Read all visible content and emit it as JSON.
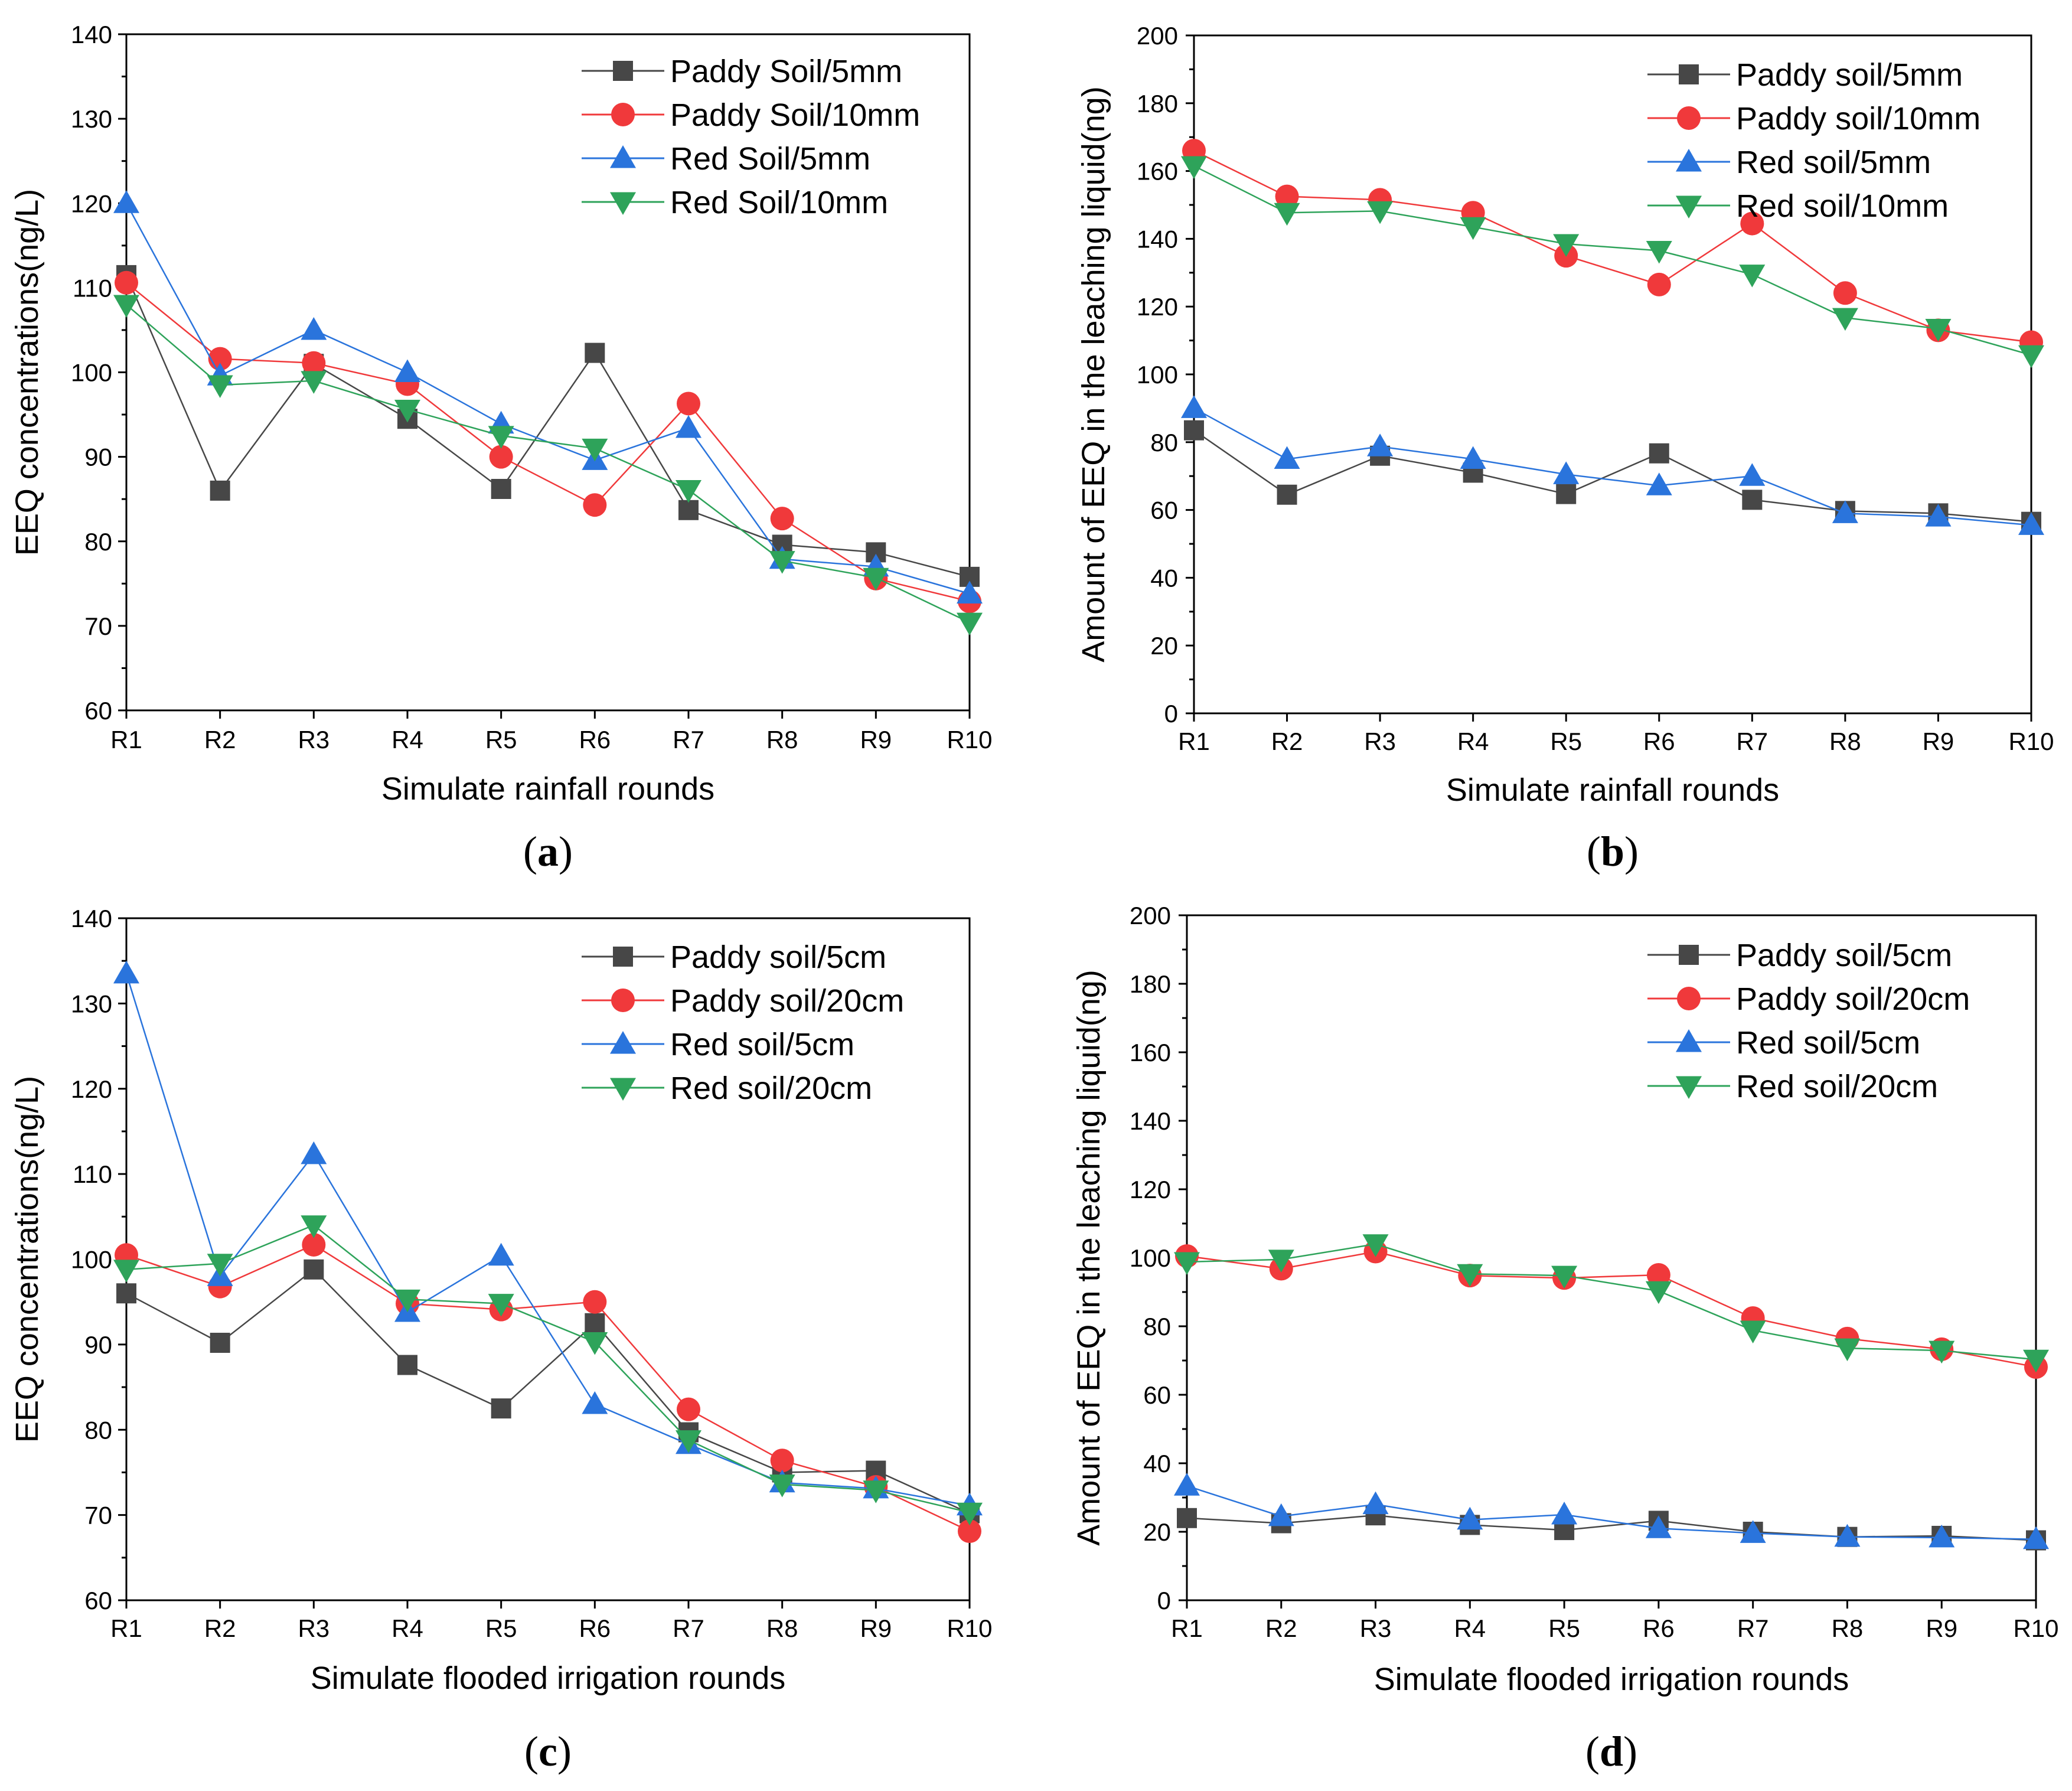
{
  "colors": {
    "paddy_small": "#474747",
    "paddy_large": "#f0393b",
    "red_small": "#2a74dc",
    "red_large": "#2ea35a",
    "axis": "#000000"
  },
  "chart_data": [
    {
      "id": "a",
      "type": "line",
      "panel_label": "a",
      "xlabel": "Simulate rainfall rounds",
      "ylabel": "EEQ concentrations(ng/L)",
      "categories": [
        "R1",
        "R2",
        "R3",
        "R4",
        "R5",
        "R6",
        "R7",
        "R8",
        "R9",
        "R10"
      ],
      "ylim": [
        60,
        140
      ],
      "yticks": [
        60,
        70,
        80,
        90,
        100,
        110,
        120,
        130,
        140
      ],
      "legend_position": "top-right",
      "series": [
        {
          "name": "Paddy Soil/5mm",
          "marker": "square",
          "color_key": "paddy_small",
          "values": [
            111.5,
            86,
            101,
            94.5,
            86.2,
            102.3,
            83.7,
            79.6,
            78.7,
            75.8
          ]
        },
        {
          "name": "Paddy Soil/10mm",
          "marker": "circle",
          "color_key": "paddy_large",
          "values": [
            110.6,
            101.6,
            101.1,
            98.6,
            90,
            84.3,
            96.3,
            82.7,
            75.6,
            72.9
          ]
        },
        {
          "name": "Red Soil/5mm",
          "marker": "triangle-up",
          "color_key": "red_small",
          "values": [
            120,
            99.6,
            105,
            100,
            93.9,
            89.6,
            93.4,
            77.9,
            77,
            73.8
          ]
        },
        {
          "name": "Red Soil/10mm",
          "marker": "triangle-down",
          "color_key": "red_large",
          "values": [
            108,
            98.5,
            99,
            95.6,
            92.5,
            91,
            86.1,
            77.7,
            75.7,
            70.4
          ]
        }
      ]
    },
    {
      "id": "b",
      "type": "line",
      "panel_label": "b",
      "xlabel": "Simulate rainfall rounds",
      "ylabel": "Amount of EEQ in the leaching liquid(ng)",
      "categories": [
        "R1",
        "R2",
        "R3",
        "R4",
        "R5",
        "R6",
        "R7",
        "R8",
        "R9",
        "R10"
      ],
      "ylim": [
        0,
        200
      ],
      "yticks": [
        0,
        20,
        40,
        60,
        80,
        100,
        120,
        140,
        160,
        180,
        200
      ],
      "legend_position": "top-right",
      "series": [
        {
          "name": "Paddy soil/5mm",
          "marker": "square",
          "color_key": "paddy_small",
          "values": [
            83.5,
            64.5,
            76,
            71,
            64.7,
            76.7,
            63,
            59.7,
            59,
            56.5
          ]
        },
        {
          "name": "Paddy soil/10mm",
          "marker": "circle",
          "color_key": "paddy_large",
          "values": [
            166,
            152.5,
            151.5,
            147.7,
            135,
            126.5,
            144.5,
            124,
            113,
            109.5
          ]
        },
        {
          "name": "Red soil/5mm",
          "marker": "triangle-up",
          "color_key": "red_small",
          "values": [
            90,
            75,
            78.7,
            75,
            70.5,
            67.2,
            70,
            59,
            58,
            55.5
          ]
        },
        {
          "name": "Red soil/10mm",
          "marker": "triangle-down",
          "color_key": "red_large",
          "values": [
            161.5,
            147.7,
            148.2,
            143.5,
            138.5,
            136.5,
            129.5,
            116.7,
            113.5,
            105.7
          ]
        }
      ]
    },
    {
      "id": "c",
      "type": "line",
      "panel_label": "c",
      "xlabel": "Simulate flooded irrigation rounds",
      "ylabel": "EEQ concentrations(ng/L)",
      "categories": [
        "R1",
        "R2",
        "R3",
        "R4",
        "R5",
        "R6",
        "R7",
        "R8",
        "R9",
        "R10"
      ],
      "ylim": [
        60,
        140
      ],
      "yticks": [
        60,
        70,
        80,
        90,
        100,
        110,
        120,
        130,
        140
      ],
      "legend_position": "top-right",
      "series": [
        {
          "name": "Paddy soil/5cm",
          "marker": "square",
          "color_key": "paddy_small",
          "values": [
            96,
            90.2,
            98.8,
            87.6,
            82.5,
            92.5,
            79.7,
            75,
            75.2,
            70.2
          ]
        },
        {
          "name": "Paddy soil/20cm",
          "marker": "circle",
          "color_key": "paddy_large",
          "values": [
            100.5,
            96.8,
            101.7,
            94.8,
            94.1,
            95,
            82.4,
            76.4,
            73.3,
            68.1
          ]
        },
        {
          "name": "Red soil/5cm",
          "marker": "triangle-up",
          "color_key": "red_small",
          "values": [
            133.5,
            98,
            112.3,
            93.8,
            100.4,
            83,
            78.3,
            73.8,
            73.1,
            71.1
          ]
        },
        {
          "name": "Red soil/20cm",
          "marker": "triangle-down",
          "color_key": "red_large",
          "values": [
            98.8,
            99.5,
            104,
            95.3,
            94.8,
            90.3,
            78.8,
            73.6,
            72.9,
            70.3
          ]
        }
      ]
    },
    {
      "id": "d",
      "type": "line",
      "panel_label": "d",
      "xlabel": "Simulate flooded irrigation rounds",
      "ylabel": "Amount of EEQ in the leaching liquid(ng)",
      "categories": [
        "R1",
        "R2",
        "R3",
        "R4",
        "R5",
        "R6",
        "R7",
        "R8",
        "R9",
        "R10"
      ],
      "ylim": [
        0,
        200
      ],
      "yticks": [
        0,
        20,
        40,
        60,
        80,
        100,
        120,
        140,
        160,
        180,
        200
      ],
      "legend_position": "top-right",
      "series": [
        {
          "name": "Paddy soil/5cm",
          "marker": "square",
          "color_key": "paddy_small",
          "values": [
            24,
            22.5,
            24.8,
            22,
            20.5,
            23.2,
            20,
            18.5,
            18.8,
            17.5
          ]
        },
        {
          "name": "Paddy soil/20cm",
          "marker": "circle",
          "color_key": "paddy_large",
          "values": [
            100.5,
            96.8,
            101.8,
            94.8,
            94.1,
            95,
            82.4,
            76.4,
            73.3,
            68.1
          ]
        },
        {
          "name": "Red soil/5cm",
          "marker": "triangle-up",
          "color_key": "red_small",
          "values": [
            33.4,
            24.5,
            28,
            23.5,
            25,
            21,
            19.6,
            18.5,
            18.3,
            17.8
          ]
        },
        {
          "name": "Red soil/20cm",
          "marker": "triangle-down",
          "color_key": "red_large",
          "values": [
            98.8,
            99.5,
            104,
            95.3,
            94.8,
            90.3,
            78.8,
            73.6,
            72.9,
            70.3
          ]
        }
      ]
    }
  ]
}
